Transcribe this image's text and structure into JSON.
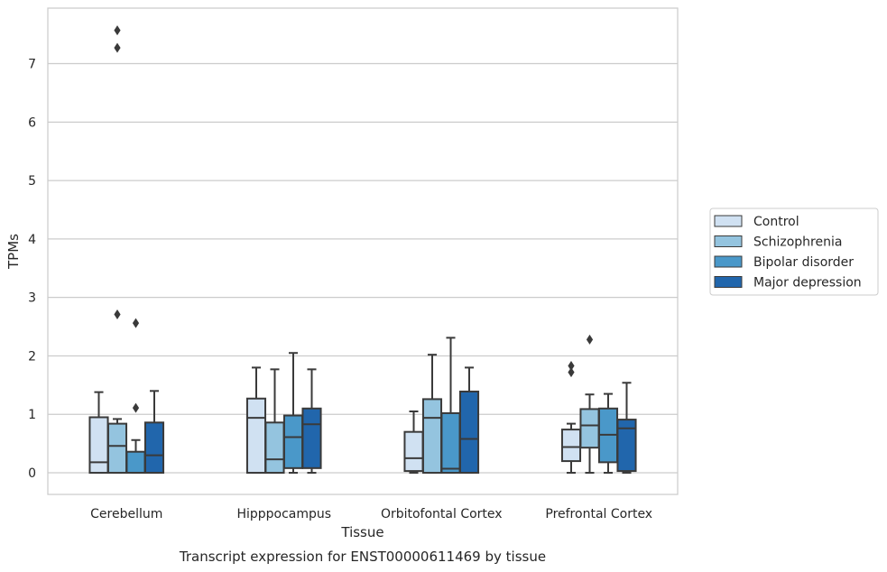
{
  "chart_data": {
    "type": "box",
    "xlabel": "Tissue",
    "ylabel": "TPMs",
    "caption": "Transcript expression for ENST00000611469 by tissue",
    "ylim": [
      -0.37,
      7.95
    ],
    "yticks": [
      0,
      1,
      2,
      3,
      4,
      5,
      6,
      7
    ],
    "grid": true,
    "legend_position": "right",
    "categories": [
      "Cerebellum",
      "Hipppocampus",
      "Orbitofontal Cortex",
      "Prefrontal Cortex"
    ],
    "series": [
      {
        "name": "Control",
        "color": "#d0e1f2",
        "boxes": [
          {
            "whislo": 0,
            "q1": 0,
            "med": 0.18,
            "q3": 0.95,
            "whishi": 1.38,
            "fliers": []
          },
          {
            "whislo": 0,
            "q1": 0,
            "med": 0.94,
            "q3": 1.27,
            "whishi": 1.8,
            "fliers": []
          },
          {
            "whislo": 0,
            "q1": 0.03,
            "med": 0.25,
            "q3": 0.7,
            "whishi": 1.05,
            "fliers": []
          },
          {
            "whislo": 0,
            "q1": 0.2,
            "med": 0.44,
            "q3": 0.74,
            "whishi": 0.84,
            "fliers": [
              1.72,
              1.83
            ]
          }
        ]
      },
      {
        "name": "Schizophrenia",
        "color": "#94c4df",
        "boxes": [
          {
            "whislo": 0,
            "q1": 0,
            "med": 0.46,
            "q3": 0.84,
            "whishi": 0.92,
            "fliers": [
              2.71,
              7.27,
              7.57
            ]
          },
          {
            "whislo": 0,
            "q1": 0,
            "med": 0.23,
            "q3": 0.86,
            "whishi": 1.77,
            "fliers": []
          },
          {
            "whislo": 0,
            "q1": 0,
            "med": 0.94,
            "q3": 1.26,
            "whishi": 2.02,
            "fliers": []
          },
          {
            "whislo": 0,
            "q1": 0.43,
            "med": 0.81,
            "q3": 1.09,
            "whishi": 1.34,
            "fliers": [
              2.28
            ]
          }
        ]
      },
      {
        "name": "Bipolar disorder",
        "color": "#4a98c9",
        "boxes": [
          {
            "whislo": 0,
            "q1": 0,
            "med": 0.0,
            "q3": 0.36,
            "whishi": 0.56,
            "fliers": [
              1.11,
              2.56
            ]
          },
          {
            "whislo": 0,
            "q1": 0.08,
            "med": 0.61,
            "q3": 0.98,
            "whishi": 2.05,
            "fliers": []
          },
          {
            "whislo": 0,
            "q1": 0,
            "med": 0.07,
            "q3": 1.02,
            "whishi": 2.31,
            "fliers": []
          },
          {
            "whislo": 0,
            "q1": 0.18,
            "med": 0.65,
            "q3": 1.1,
            "whishi": 1.35,
            "fliers": []
          }
        ]
      },
      {
        "name": "Major depression",
        "color": "#2166ac",
        "boxes": [
          {
            "whislo": 0,
            "q1": 0,
            "med": 0.3,
            "q3": 0.86,
            "whishi": 1.4,
            "fliers": []
          },
          {
            "whislo": 0,
            "q1": 0.08,
            "med": 0.83,
            "q3": 1.1,
            "whishi": 1.77,
            "fliers": []
          },
          {
            "whislo": 0,
            "q1": 0,
            "med": 0.58,
            "q3": 1.39,
            "whishi": 1.8,
            "fliers": []
          },
          {
            "whislo": 0,
            "q1": 0.03,
            "med": 0.76,
            "q3": 0.91,
            "whishi": 1.54,
            "fliers": []
          }
        ]
      }
    ]
  }
}
